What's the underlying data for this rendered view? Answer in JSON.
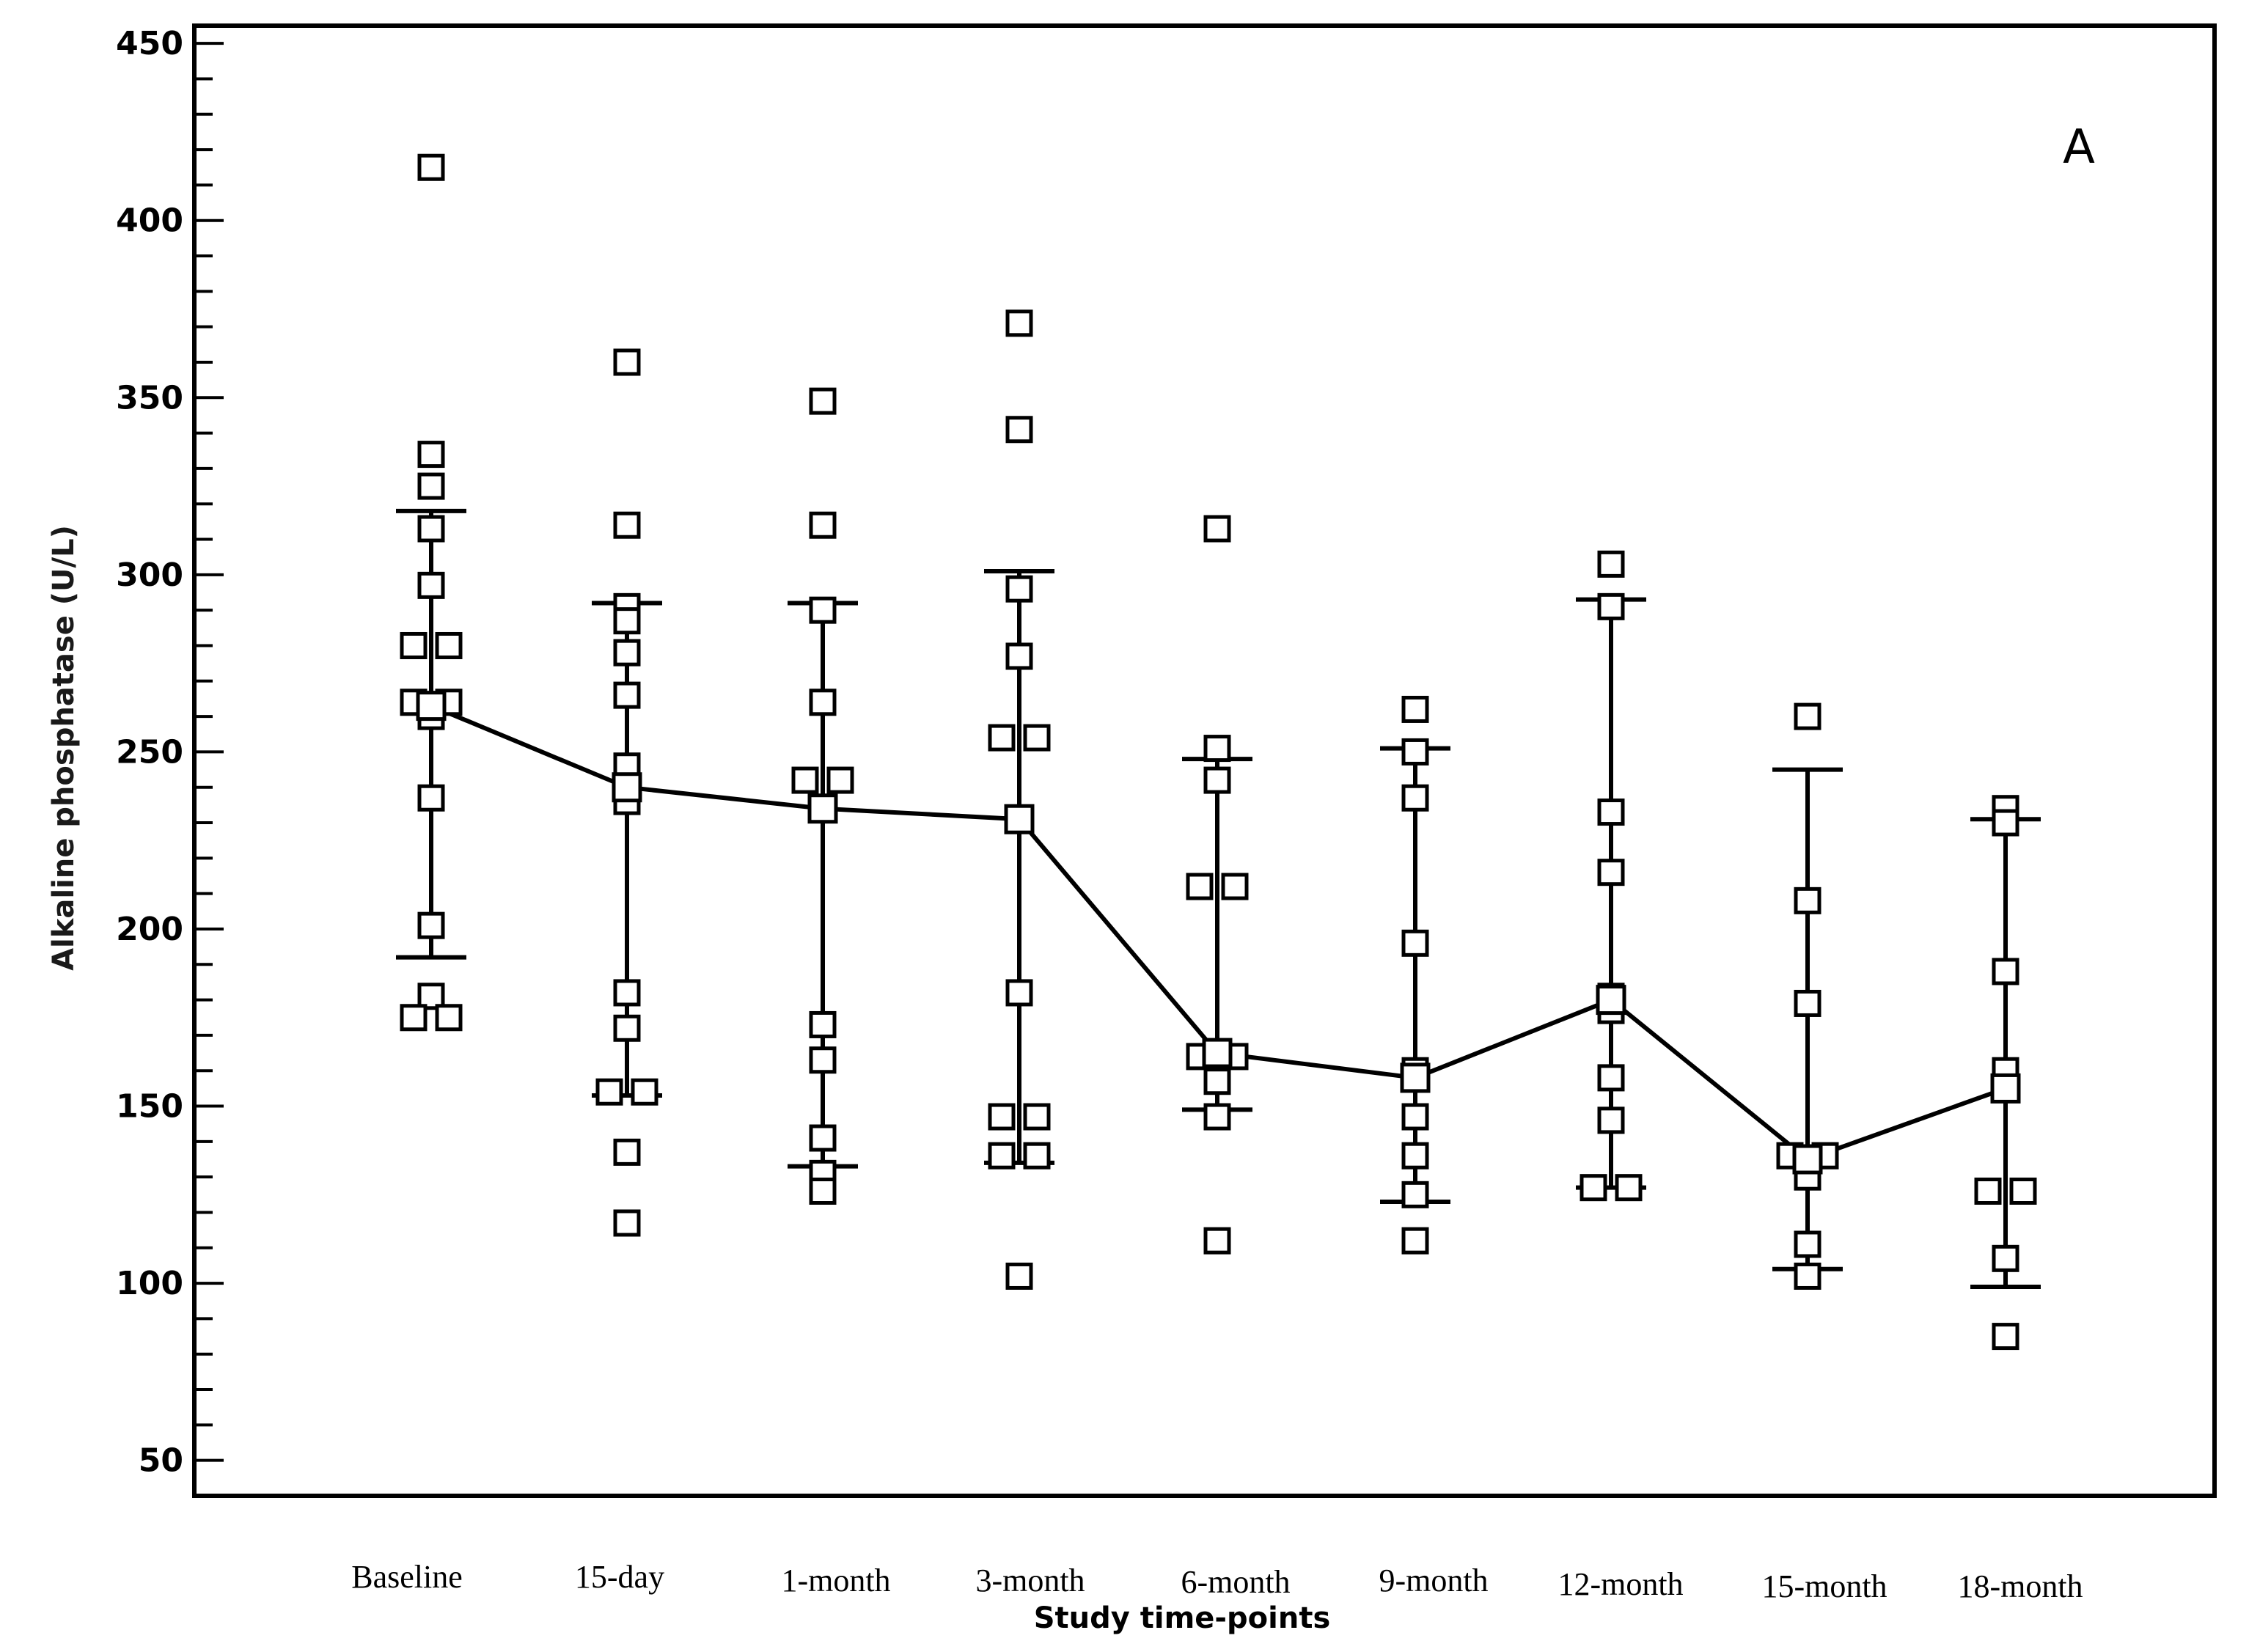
{
  "chart_data": {
    "type": "scatter",
    "panel_label": "A",
    "ylabel": "Alkaline phosphatase (U/L)",
    "xlabel": "Study time-points",
    "ylim": [
      40,
      455
    ],
    "yticks": [
      50,
      100,
      150,
      200,
      250,
      300,
      350,
      400,
      450
    ],
    "ytick_labels": [
      "50",
      "100",
      "150",
      "200",
      "250",
      "300",
      "350",
      "400",
      "450"
    ],
    "y_minor_step": 10,
    "categories": [
      "Baseline",
      "15-day",
      "1-month",
      "3-month",
      "6-month",
      "9-month",
      "12-month",
      "15-month",
      "18-month"
    ],
    "mean": [
      263,
      240,
      234,
      231,
      165,
      158,
      180,
      135,
      155
    ],
    "sd_upper": [
      318,
      292,
      292,
      301,
      248,
      251,
      293,
      245,
      231
    ],
    "sd_lower": [
      192,
      153,
      133,
      134,
      149,
      123,
      127,
      104,
      99
    ],
    "points": [
      [
        415,
        334,
        325,
        313,
        297,
        280,
        280,
        264,
        264,
        260,
        237,
        201,
        181,
        175,
        175
      ],
      [
        360,
        314,
        291,
        287,
        278,
        266,
        246,
        236,
        182,
        172,
        154,
        154,
        137,
        117
      ],
      [
        349,
        314,
        290,
        264,
        242,
        242,
        173,
        163,
        141,
        131,
        126
      ],
      [
        371,
        341,
        296,
        277,
        254,
        254,
        182,
        147,
        147,
        136,
        136,
        102
      ],
      [
        313,
        251,
        242,
        212,
        212,
        164,
        164,
        157,
        147,
        112
      ],
      [
        262,
        250,
        237,
        196,
        160,
        147,
        136,
        125,
        112
      ],
      [
        303,
        291,
        233,
        216,
        181,
        177,
        158,
        146,
        127,
        127
      ],
      [
        260,
        208,
        179,
        136,
        136,
        130,
        111,
        102
      ],
      [
        234,
        230,
        188,
        160,
        126,
        126,
        107,
        85
      ]
    ]
  }
}
